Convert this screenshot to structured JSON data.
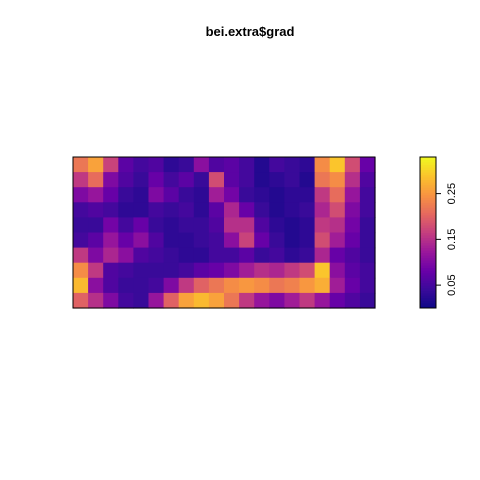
{
  "chart_data": {
    "type": "heatmap",
    "title": "bei.extra$grad",
    "xlabel": "",
    "ylabel": "",
    "legend": "right",
    "grid": false,
    "colorbar": {
      "range": [
        0,
        0.33
      ],
      "ticks": [
        0.05,
        0.15,
        0.25
      ],
      "tick_labels": [
        "0.05",
        "0.15",
        "0.25"
      ],
      "colors": [
        "#0d0887",
        "#3a0a9a",
        "#6a00a8",
        "#9a179b",
        "#c43e7f",
        "#e5685f",
        "#f89441",
        "#fbc32c",
        "#f0f921"
      ]
    },
    "grid_size": {
      "cols": 20,
      "rows": 10
    },
    "z": [
      [
        0.22,
        0.26,
        0.17,
        0.07,
        0.05,
        0.06,
        0.03,
        0.04,
        0.11,
        0.06,
        0.07,
        0.05,
        0.02,
        0.05,
        0.04,
        0.03,
        0.24,
        0.29,
        0.18,
        0.08
      ],
      [
        0.16,
        0.21,
        0.1,
        0.06,
        0.04,
        0.08,
        0.05,
        0.07,
        0.04,
        0.18,
        0.07,
        0.05,
        0.02,
        0.03,
        0.04,
        0.02,
        0.22,
        0.24,
        0.15,
        0.06
      ],
      [
        0.1,
        0.12,
        0.08,
        0.04,
        0.03,
        0.1,
        0.07,
        0.04,
        0.03,
        0.13,
        0.09,
        0.04,
        0.03,
        0.02,
        0.03,
        0.03,
        0.16,
        0.21,
        0.12,
        0.05
      ],
      [
        0.05,
        0.06,
        0.05,
        0.03,
        0.03,
        0.05,
        0.04,
        0.05,
        0.03,
        0.07,
        0.14,
        0.08,
        0.04,
        0.02,
        0.03,
        0.04,
        0.14,
        0.18,
        0.1,
        0.05
      ],
      [
        0.04,
        0.04,
        0.09,
        0.05,
        0.08,
        0.04,
        0.03,
        0.04,
        0.04,
        0.06,
        0.15,
        0.15,
        0.06,
        0.03,
        0.02,
        0.03,
        0.16,
        0.15,
        0.09,
        0.04
      ],
      [
        0.05,
        0.07,
        0.12,
        0.08,
        0.11,
        0.06,
        0.03,
        0.03,
        0.04,
        0.05,
        0.11,
        0.17,
        0.08,
        0.04,
        0.02,
        0.03,
        0.18,
        0.13,
        0.08,
        0.04
      ],
      [
        0.16,
        0.1,
        0.14,
        0.11,
        0.06,
        0.05,
        0.04,
        0.03,
        0.03,
        0.05,
        0.05,
        0.07,
        0.04,
        0.05,
        0.03,
        0.04,
        0.14,
        0.08,
        0.06,
        0.04
      ],
      [
        0.24,
        0.16,
        0.06,
        0.05,
        0.04,
        0.04,
        0.04,
        0.05,
        0.07,
        0.08,
        0.1,
        0.13,
        0.15,
        0.14,
        0.16,
        0.18,
        0.29,
        0.11,
        0.07,
        0.05
      ],
      [
        0.28,
        0.11,
        0.06,
        0.04,
        0.04,
        0.05,
        0.1,
        0.16,
        0.2,
        0.22,
        0.24,
        0.25,
        0.24,
        0.22,
        0.23,
        0.25,
        0.27,
        0.13,
        0.08,
        0.05
      ],
      [
        0.2,
        0.15,
        0.1,
        0.05,
        0.04,
        0.12,
        0.2,
        0.26,
        0.28,
        0.26,
        0.22,
        0.16,
        0.12,
        0.1,
        0.13,
        0.16,
        0.12,
        0.08,
        0.06,
        0.04
      ]
    ]
  }
}
